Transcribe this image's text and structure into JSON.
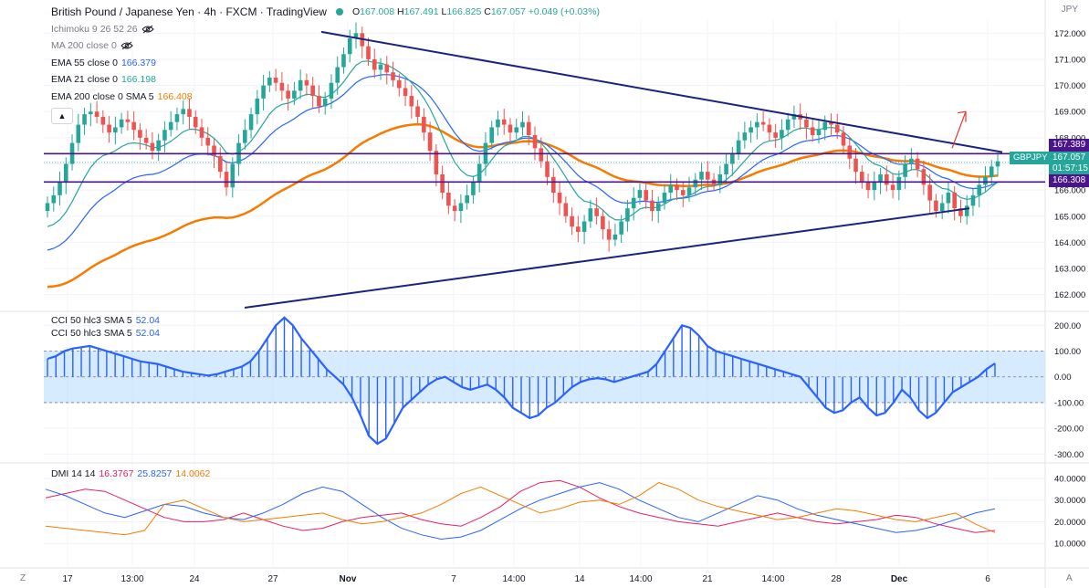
{
  "header": {
    "title": "British Pound / Japanese Yen · 4h · FXCM · TradingView",
    "ohlc": {
      "o_label": "O",
      "o": "167.008",
      "h_label": "H",
      "h": "167.491",
      "l_label": "L",
      "l": "166.825",
      "c_label": "C",
      "c": "167.057",
      "change": "+0.049 (+0.03%)"
    }
  },
  "indicators": [
    {
      "label": "Ichimoku 9 26 52 26",
      "value": "",
      "hidden": true
    },
    {
      "label": "MA 200 close 0",
      "value": "",
      "hidden": true
    },
    {
      "label": "EMA 55 close 0",
      "value": "166.379",
      "color": "#2962ff"
    },
    {
      "label": "EMA 21 close 0",
      "value": "166.198",
      "color": "#26a69a"
    },
    {
      "label": "EMA 200 close 0 SMA 5",
      "value": "166.408",
      "color": "#f57c00"
    }
  ],
  "cci_legend": [
    {
      "label": "CCI 50 hlc3 SMA 5",
      "value": "52.04",
      "color": "#2962ff"
    },
    {
      "label": "CCI 50 hlc3 SMA 5",
      "value": "52.04",
      "color": "#2962ff"
    }
  ],
  "dmi_legend": {
    "label": "DMI 14 14",
    "plus": "16.3767",
    "minus": "25.8257",
    "adx": "14.0062",
    "plus_color": "#e91e63",
    "minus_color": "#2962ff",
    "adx_color": "#f57c00"
  },
  "currency": "JPY",
  "symbol_badge": "GBPJPY",
  "last_price": "167.057",
  "countdown": "01:57:15",
  "level_tags": {
    "upper": "167.389",
    "lower": "166.308"
  },
  "corner_left": "Z",
  "corner_right": "A",
  "colors": {
    "up": "#26a69a",
    "down": "#ef5350",
    "trendline": "#1a237e",
    "level": "#4a148c",
    "ema55": "#2962ff",
    "ema21": "#26a69a",
    "ema200": "#f57c00",
    "cci": "#2962ff",
    "cci_band": "#bbdefb"
  },
  "chart_data": [
    {
      "type": "line",
      "name": "price",
      "ylim": [
        161.5,
        172.5
      ],
      "yticks": [
        "172.000",
        "171.000",
        "170.000",
        "169.000",
        "168.000",
        "167.000",
        "166.000",
        "165.000",
        "164.000",
        "163.000",
        "162.000"
      ],
      "xticks": [
        "17",
        "13:00",
        "24",
        "27",
        "Nov",
        "7",
        "14:00",
        "14",
        "14:00",
        "21",
        "14:00",
        "28",
        "Dec",
        "6"
      ],
      "candles_close": [
        165.5,
        165.8,
        166.3,
        167.0,
        167.8,
        168.5,
        168.9,
        169.0,
        168.8,
        168.5,
        168.2,
        168.4,
        168.7,
        168.6,
        168.3,
        168.0,
        167.8,
        167.5,
        167.9,
        168.3,
        168.6,
        168.9,
        169.1,
        168.8,
        168.4,
        168.0,
        167.7,
        167.3,
        166.7,
        166.1,
        167.0,
        167.8,
        168.3,
        168.9,
        169.5,
        170.0,
        170.3,
        170.1,
        169.8,
        169.5,
        169.8,
        170.2,
        170.0,
        169.6,
        169.2,
        169.5,
        170.1,
        170.7,
        171.2,
        171.8,
        172.0,
        171.5,
        171.0,
        170.6,
        170.8,
        170.5,
        170.2,
        169.9,
        169.6,
        169.2,
        168.8,
        168.2,
        167.5,
        166.6,
        165.9,
        165.4,
        165.2,
        165.5,
        165.8,
        166.3,
        167.0,
        167.8,
        168.4,
        168.7,
        168.5,
        168.2,
        168.4,
        168.6,
        168.1,
        167.6,
        167.1,
        166.5,
        165.9,
        165.5,
        165.0,
        164.6,
        164.4,
        164.8,
        165.3,
        165.0,
        164.5,
        164.1,
        164.3,
        164.8,
        165.3,
        165.7,
        166.0,
        165.6,
        165.2,
        165.5,
        165.9,
        166.2,
        166.0,
        165.8,
        166.1,
        166.4,
        166.7,
        166.4,
        166.2,
        166.6,
        167.0,
        167.4,
        167.9,
        168.2,
        168.4,
        168.6,
        168.5,
        168.2,
        168.0,
        168.3,
        168.7,
        168.9,
        168.7,
        168.4,
        168.1,
        168.3,
        168.6,
        168.5,
        168.2,
        167.7,
        167.2,
        166.7,
        166.3,
        166.0,
        166.3,
        166.6,
        166.2,
        166.0,
        166.5,
        167.0,
        167.2,
        166.8,
        166.2,
        165.6,
        165.2,
        165.5,
        165.9,
        165.3,
        165.0,
        165.4,
        165.8,
        166.2,
        166.5,
        166.9,
        167.1
      ]
    },
    {
      "type": "bar",
      "name": "CCI",
      "ylim": [
        -320,
        240
      ],
      "yticks": [
        "200.00",
        "100.00",
        "0.00",
        "-100.00",
        "-200.00",
        "-300.00"
      ],
      "band": [
        -100,
        100
      ],
      "values": [
        70,
        80,
        100,
        110,
        115,
        120,
        110,
        100,
        90,
        80,
        70,
        60,
        55,
        50,
        40,
        30,
        20,
        15,
        10,
        5,
        10,
        20,
        30,
        40,
        60,
        100,
        150,
        200,
        230,
        200,
        150,
        110,
        70,
        30,
        0,
        -30,
        -80,
        -150,
        -230,
        -260,
        -240,
        -180,
        -120,
        -90,
        -60,
        -30,
        -10,
        0,
        -20,
        -40,
        -50,
        -40,
        -30,
        -50,
        -80,
        -120,
        -140,
        -160,
        -150,
        -120,
        -100,
        -70,
        -40,
        -20,
        -10,
        -5,
        -10,
        -20,
        -10,
        0,
        10,
        20,
        50,
        100,
        150,
        200,
        190,
        160,
        120,
        100,
        90,
        80,
        70,
        60,
        50,
        40,
        30,
        20,
        10,
        0,
        -40,
        -80,
        -120,
        -140,
        -130,
        -100,
        -80,
        -120,
        -150,
        -140,
        -100,
        -50,
        -80,
        -130,
        -160,
        -140,
        -100,
        -60,
        -40,
        -20,
        0,
        30,
        52
      ]
    },
    {
      "type": "line",
      "name": "DMI",
      "ylim": [
        0,
        45
      ],
      "yticks": [
        "40.0000",
        "30.0000",
        "20.0000",
        "10.0000"
      ],
      "series": [
        {
          "values": [
            31,
            33,
            35,
            34,
            30,
            26,
            22,
            20,
            20,
            21,
            24,
            21,
            18,
            16,
            17,
            20,
            22,
            23,
            24,
            21,
            19,
            18,
            22,
            27,
            34,
            38,
            39,
            36,
            31,
            27,
            24,
            22,
            20,
            19,
            18,
            20,
            22,
            24,
            22,
            20,
            19,
            20,
            21,
            23,
            22,
            19,
            17,
            15,
            16
          ]
        },
        {
          "values": [
            35,
            32,
            28,
            24,
            22,
            25,
            28,
            27,
            24,
            22,
            21,
            24,
            28,
            33,
            36,
            34,
            28,
            22,
            17,
            14,
            12,
            13,
            16,
            21,
            26,
            30,
            33,
            36,
            38,
            35,
            30,
            26,
            22,
            20,
            24,
            28,
            32,
            30,
            26,
            23,
            21,
            19,
            17,
            15,
            16,
            18,
            21,
            24,
            26
          ]
        },
        {
          "values": [
            18,
            17,
            16,
            15,
            14,
            16,
            28,
            30,
            26,
            22,
            20,
            21,
            22,
            23,
            24,
            21,
            19,
            20,
            22,
            24,
            28,
            33,
            36,
            32,
            28,
            24,
            26,
            29,
            30,
            28,
            32,
            38,
            35,
            30,
            27,
            25,
            23,
            21,
            22,
            24,
            26,
            25,
            23,
            21,
            20,
            22,
            24,
            19,
            15
          ]
        }
      ]
    }
  ]
}
